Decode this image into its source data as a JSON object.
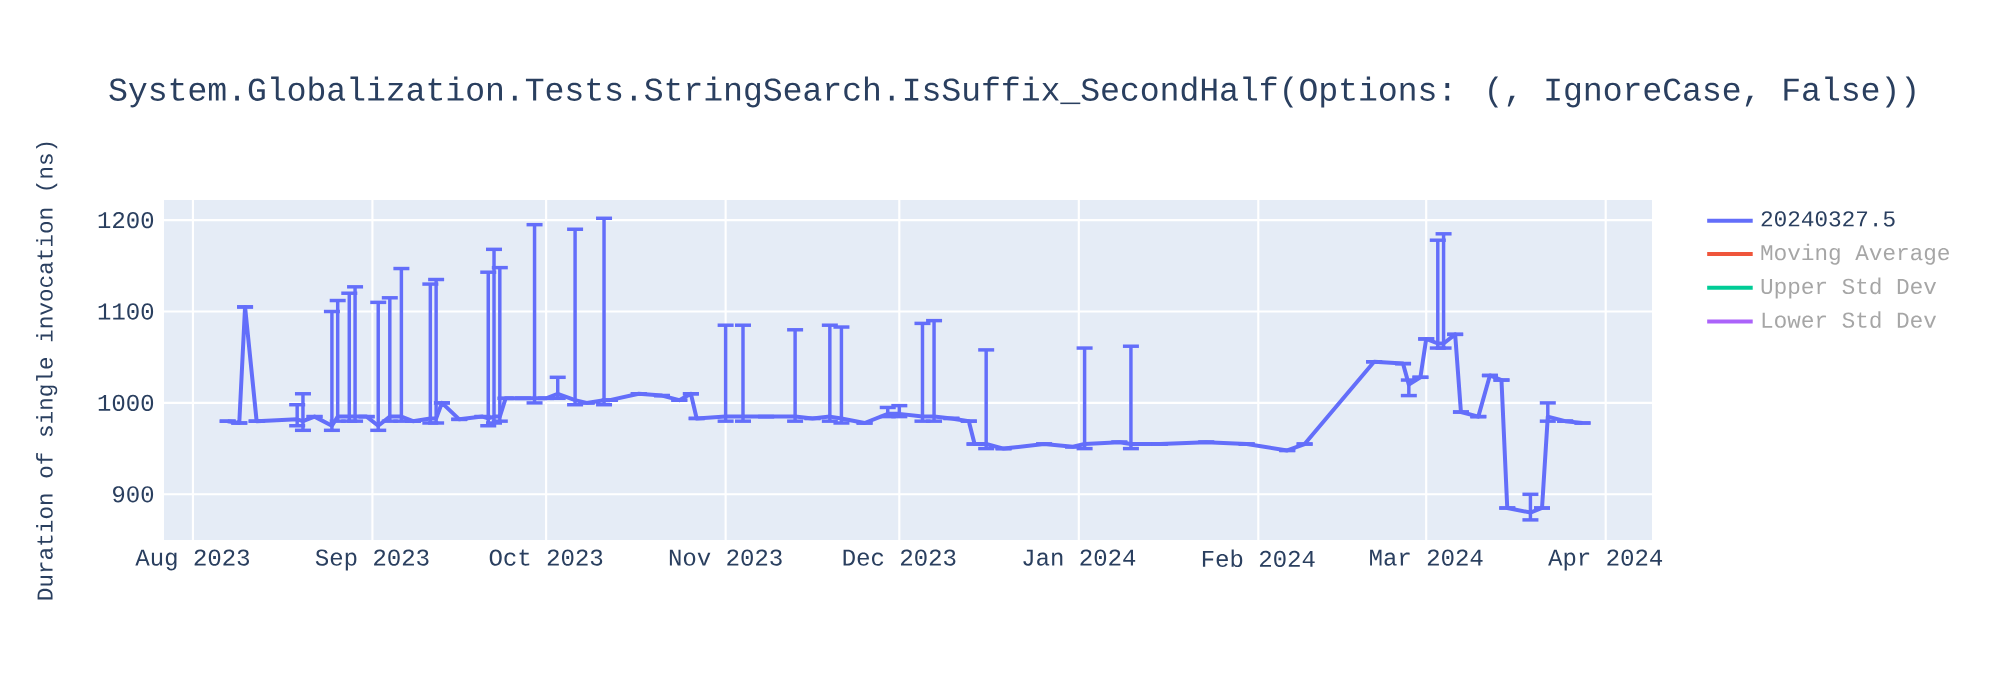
{
  "chart_data": {
    "type": "line",
    "title": "System.Globalization.Tests.StringSearch.IsSuffix_SecondHalf(Options: (, IgnoreCase, False))",
    "ylabel": "Duration of single invocation (ns)",
    "xlim": [
      "2023-07-27",
      "2024-04-09"
    ],
    "ylim": [
      850,
      1222
    ],
    "xticks": [
      {
        "value": "2023-08-01",
        "label": "Aug 2023"
      },
      {
        "value": "2023-09-01",
        "label": "Sep 2023"
      },
      {
        "value": "2023-10-01",
        "label": "Oct 2023"
      },
      {
        "value": "2023-11-01",
        "label": "Nov 2023"
      },
      {
        "value": "2023-12-01",
        "label": "Dec 2023"
      },
      {
        "value": "2024-01-01",
        "label": "Jan 2024"
      },
      {
        "value": "2024-02-01",
        "label": "Feb 2024"
      },
      {
        "value": "2024-03-01",
        "label": "Mar 2024"
      },
      {
        "value": "2024-04-01",
        "label": "Apr 2024"
      }
    ],
    "yticks": [
      900,
      1000,
      1100,
      1200
    ],
    "grid": true,
    "legend": "right",
    "marker": "none",
    "line_style": "solid",
    "series": [
      {
        "name": "20240327.5",
        "color": "#636efa",
        "x": [
          "2023-08-07",
          "2023-08-09",
          "2023-08-10",
          "2023-08-12",
          "2023-08-19",
          "2023-08-20",
          "2023-08-22",
          "2023-08-25",
          "2023-08-26",
          "2023-08-28",
          "2023-08-29",
          "2023-08-31",
          "2023-09-02",
          "2023-09-04",
          "2023-09-06",
          "2023-09-08",
          "2023-09-11",
          "2023-09-12",
          "2023-09-13",
          "2023-09-16",
          "2023-09-20",
          "2023-09-21",
          "2023-09-22",
          "2023-09-23",
          "2023-09-24",
          "2023-09-27",
          "2023-09-29",
          "2023-10-01",
          "2023-10-03",
          "2023-10-06",
          "2023-10-08",
          "2023-10-11",
          "2023-10-12",
          "2023-10-17",
          "2023-10-21",
          "2023-10-24",
          "2023-10-26",
          "2023-10-27",
          "2023-11-01",
          "2023-11-04",
          "2023-11-08",
          "2023-11-13",
          "2023-11-16",
          "2023-11-19",
          "2023-11-21",
          "2023-11-25",
          "2023-11-29",
          "2023-12-01",
          "2023-12-05",
          "2023-12-07",
          "2023-12-10",
          "2023-12-13",
          "2023-12-14",
          "2023-12-16",
          "2023-12-19",
          "2023-12-26",
          "2023-12-31",
          "2024-01-02",
          "2024-01-08",
          "2024-01-10",
          "2024-01-15",
          "2024-01-23",
          "2024-01-30",
          "2024-02-06",
          "2024-02-09",
          "2024-02-21",
          "2024-02-26",
          "2024-02-27",
          "2024-02-29",
          "2024-03-01",
          "2024-03-03",
          "2024-03-04",
          "2024-03-06",
          "2024-03-07",
          "2024-03-10",
          "2024-03-12",
          "2024-03-14",
          "2024-03-15",
          "2024-03-19",
          "2024-03-21",
          "2024-03-22",
          "2024-03-25",
          "2024-03-28"
        ],
        "values": [
          980,
          978,
          1105,
          980,
          982,
          980,
          985,
          975,
          985,
          985,
          985,
          985,
          975,
          985,
          985,
          980,
          983,
          983,
          1000,
          982,
          985,
          983,
          985,
          985,
          1005,
          1005,
          1005,
          1005,
          1010,
          1003,
          1000,
          1003,
          1003,
          1010,
          1008,
          1003,
          1010,
          983,
          985,
          985,
          985,
          985,
          983,
          985,
          983,
          978,
          988,
          988,
          985,
          985,
          983,
          980,
          955,
          955,
          950,
          955,
          952,
          955,
          957,
          955,
          955,
          957,
          955,
          948,
          955,
          1045,
          1043,
          1020,
          1028,
          1070,
          1065,
          1065,
          1075,
          990,
          985,
          1030,
          1025,
          885,
          880,
          885,
          985,
          980,
          978
        ],
        "errors": [
          null,
          null,
          null,
          null,
          [
            975,
            998
          ],
          [
            970,
            1010
          ],
          null,
          [
            970,
            1100
          ],
          [
            980,
            1112
          ],
          [
            980,
            1120
          ],
          [
            980,
            1127
          ],
          null,
          [
            970,
            1110
          ],
          [
            980,
            1115
          ],
          [
            980,
            1147
          ],
          null,
          [
            978,
            1130
          ],
          [
            978,
            1135
          ],
          null,
          null,
          null,
          [
            975,
            1143
          ],
          [
            978,
            1168
          ],
          [
            980,
            1148
          ],
          null,
          null,
          [
            1000,
            1195
          ],
          null,
          [
            1005,
            1028
          ],
          [
            998,
            1190
          ],
          null,
          [
            998,
            1202
          ],
          null,
          null,
          null,
          null,
          null,
          null,
          [
            980,
            1085
          ],
          [
            980,
            1085
          ],
          null,
          [
            980,
            1080
          ],
          null,
          [
            980,
            1085
          ],
          [
            978,
            1083
          ],
          null,
          [
            985,
            995
          ],
          [
            985,
            997
          ],
          [
            980,
            1087
          ],
          [
            980,
            1090
          ],
          null,
          null,
          null,
          [
            950,
            1058
          ],
          null,
          null,
          null,
          [
            950,
            1060
          ],
          null,
          [
            950,
            1062
          ],
          null,
          null,
          null,
          null,
          null,
          null,
          null,
          [
            1008,
            1025
          ],
          null,
          null,
          [
            1060,
            1178
          ],
          [
            1060,
            1185
          ],
          null,
          null,
          null,
          null,
          null,
          null,
          [
            872,
            900
          ],
          null,
          [
            980,
            1000
          ],
          null,
          null
        ]
      },
      {
        "name": "Moving Average",
        "color": "#ef553b"
      },
      {
        "name": "Upper Std Dev",
        "color": "#00cc96"
      },
      {
        "name": "Lower Std Dev",
        "color": "#ab63fa"
      }
    ]
  }
}
